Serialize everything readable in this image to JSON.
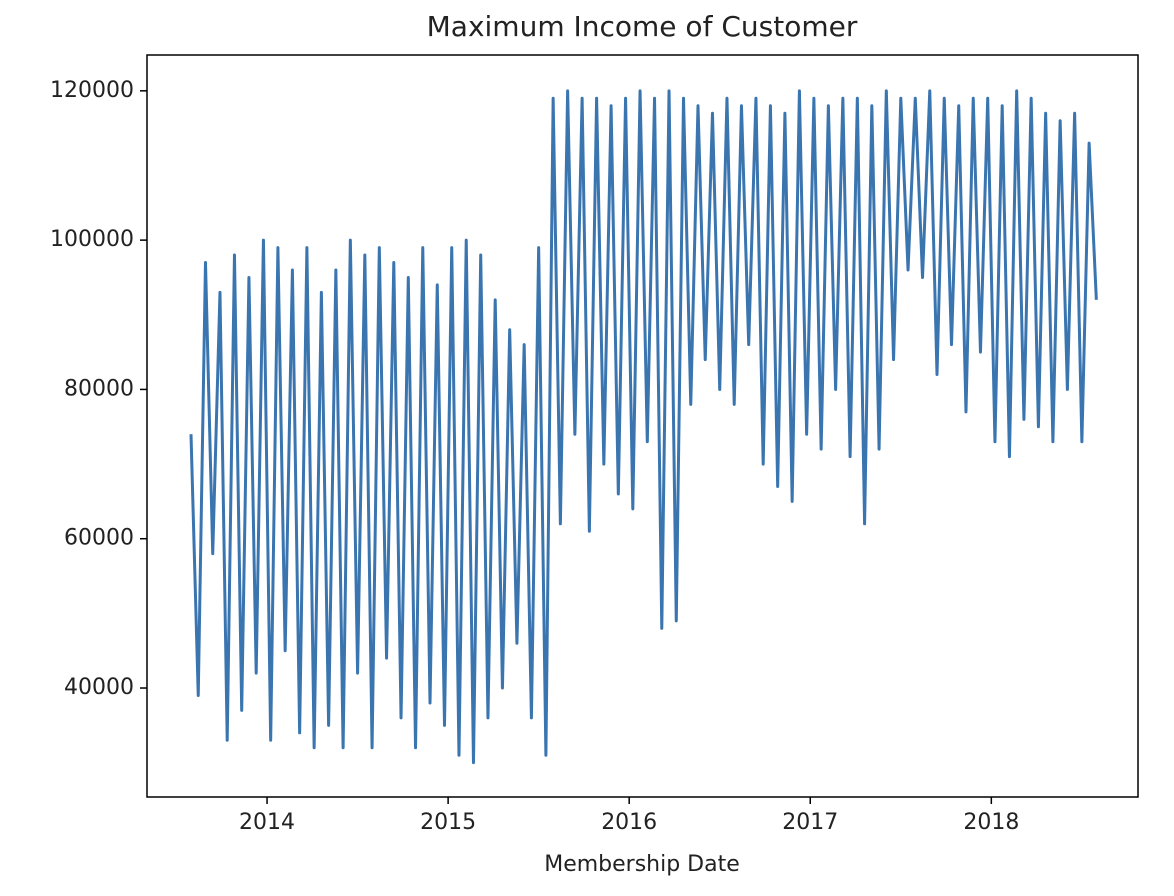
{
  "chart_data": {
    "type": "line",
    "title": "Maximum Income of Customer",
    "x_label": "Membership Date",
    "color": "#3a75b0",
    "x": [
      2013.58,
      2013.62,
      2013.66,
      2013.7,
      2013.74,
      2013.78,
      2013.82,
      2013.86,
      2013.9,
      2013.94,
      2013.98,
      2014.02,
      2014.06,
      2014.1,
      2014.14,
      2014.18,
      2014.22,
      2014.26,
      2014.3,
      2014.34,
      2014.38,
      2014.42,
      2014.46,
      2014.5,
      2014.54,
      2014.58,
      2014.62,
      2014.66,
      2014.7,
      2014.74,
      2014.78,
      2014.82,
      2014.86,
      2014.9,
      2014.94,
      2014.98,
      2015.02,
      2015.06,
      2015.1,
      2015.14,
      2015.18,
      2015.22,
      2015.26,
      2015.3,
      2015.34,
      2015.38,
      2015.42,
      2015.46,
      2015.5,
      2015.54,
      2015.58,
      2015.62,
      2015.66,
      2015.7,
      2015.74,
      2015.78,
      2015.82,
      2015.86,
      2015.9,
      2015.94,
      2015.98,
      2016.02,
      2016.06,
      2016.1,
      2016.14,
      2016.18,
      2016.22,
      2016.26,
      2016.3,
      2016.34,
      2016.38,
      2016.42,
      2016.46,
      2016.5,
      2016.54,
      2016.58,
      2016.62,
      2016.66,
      2016.7,
      2016.74,
      2016.78,
      2016.82,
      2016.86,
      2016.9,
      2016.94,
      2016.98,
      2017.02,
      2017.06,
      2017.1,
      2017.14,
      2017.18,
      2017.22,
      2017.26,
      2017.3,
      2017.34,
      2017.38,
      2017.42,
      2017.46,
      2017.5,
      2017.54,
      2017.58,
      2017.62,
      2017.66,
      2017.7,
      2017.74,
      2017.78,
      2017.82,
      2017.86,
      2017.9,
      2017.94,
      2017.98,
      2018.02,
      2018.06,
      2018.1,
      2018.14,
      2018.18,
      2018.22,
      2018.26,
      2018.3,
      2018.34,
      2018.38,
      2018.42,
      2018.46,
      2018.5,
      2018.54,
      2018.58
    ],
    "values": [
      74000,
      39000,
      97000,
      58000,
      93000,
      33000,
      98000,
      37000,
      95000,
      42000,
      100000,
      33000,
      99000,
      45000,
      96000,
      34000,
      99000,
      32000,
      93000,
      35000,
      96000,
      32000,
      100000,
      42000,
      98000,
      32000,
      99000,
      44000,
      97000,
      36000,
      95000,
      32000,
      99000,
      38000,
      94000,
      35000,
      99000,
      31000,
      100000,
      30000,
      98000,
      36000,
      92000,
      40000,
      88000,
      46000,
      86000,
      36000,
      99000,
      31000,
      119000,
      62000,
      120000,
      74000,
      119000,
      61000,
      119000,
      70000,
      118000,
      66000,
      119000,
      64000,
      120000,
      73000,
      119000,
      48000,
      120000,
      49000,
      119000,
      78000,
      118000,
      84000,
      117000,
      80000,
      119000,
      78000,
      118000,
      86000,
      119000,
      70000,
      118000,
      67000,
      117000,
      65000,
      120000,
      74000,
      119000,
      72000,
      118000,
      80000,
      119000,
      71000,
      119000,
      62000,
      118000,
      72000,
      120000,
      84000,
      119000,
      96000,
      119000,
      95000,
      120000,
      82000,
      119000,
      86000,
      118000,
      77000,
      119000,
      85000,
      119000,
      73000,
      118000,
      71000,
      120000,
      76000,
      119000,
      75000,
      117000,
      73000,
      116000,
      80000,
      117000,
      73000,
      113000,
      92000
    ],
    "xlim": [
      2013.337,
      2018.81
    ],
    "xticks": [
      2014,
      2015,
      2016,
      2017,
      2018
    ],
    "ylim": [
      25400,
      124800
    ],
    "yticks": [
      40000,
      60000,
      80000,
      100000,
      120000
    ]
  }
}
